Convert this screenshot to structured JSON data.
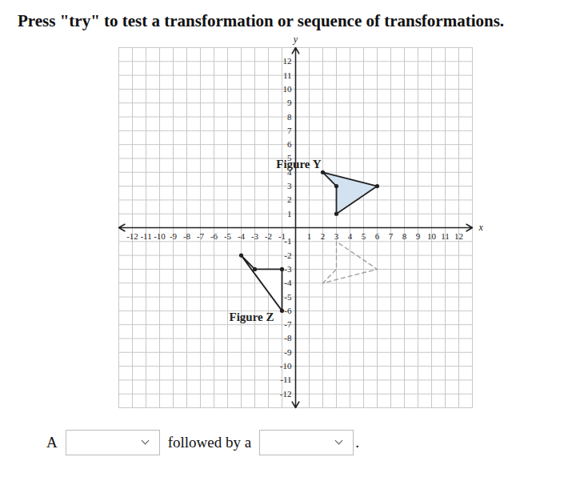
{
  "header": {
    "text": "Press \"try\" to test a transformation or sequence of transformations."
  },
  "chart_data": {
    "type": "polygon",
    "x_label": "x",
    "y_label": "y",
    "xlim": [
      -13,
      13
    ],
    "ylim": [
      -13,
      13
    ],
    "xticks": [
      -12,
      -11,
      -10,
      -9,
      -8,
      -7,
      -6,
      -5,
      -4,
      -3,
      -2,
      -1,
      1,
      2,
      3,
      4,
      5,
      6,
      7,
      8,
      9,
      10,
      11,
      12
    ],
    "yticks": [
      -12,
      -11,
      -10,
      -9,
      -8,
      -7,
      -6,
      -5,
      -4,
      -3,
      -2,
      -1,
      1,
      2,
      3,
      4,
      5,
      6,
      7,
      8,
      9,
      10,
      11,
      12
    ],
    "grid": true,
    "series": [
      {
        "name": "Figure Y",
        "color": "#d3e2f0",
        "line_style": "solid",
        "marker": "circle",
        "x": [
          2,
          3,
          3,
          6
        ],
        "y": [
          4,
          3,
          1,
          3
        ]
      },
      {
        "name": "Figure Z",
        "color": "#ffffff",
        "line_style": "solid",
        "marker": "circle",
        "x": [
          -4,
          -3,
          -1,
          -1
        ],
        "y": [
          -2,
          -3,
          -3,
          -6
        ]
      },
      {
        "color": "#9a9a9a",
        "line_style": "dashed",
        "marker": "none",
        "x": [
          2,
          3,
          3,
          6
        ],
        "y": [
          -4,
          -3,
          -1,
          -3
        ]
      }
    ]
  },
  "footer": {
    "parts": [
      "A",
      "followed by a",
      "."
    ]
  }
}
